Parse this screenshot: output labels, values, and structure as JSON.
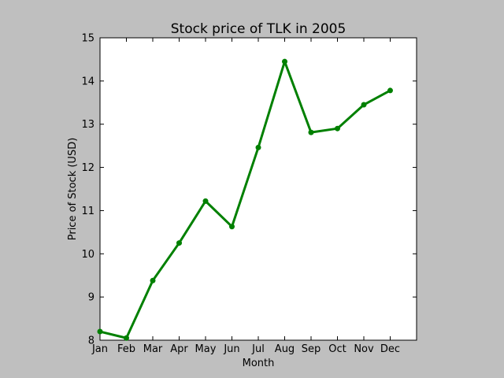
{
  "chart_data": {
    "type": "line",
    "title": "Stock price of TLK in 2005",
    "xlabel": "Month",
    "ylabel": "Price of Stock (USD)",
    "categories": [
      "Jan",
      "Feb",
      "Mar",
      "Apr",
      "May",
      "Jun",
      "Jul",
      "Aug",
      "Sep",
      "Oct",
      "Nov",
      "Dec"
    ],
    "values": [
      8.2,
      8.05,
      9.38,
      10.25,
      11.22,
      10.63,
      12.46,
      14.45,
      12.81,
      12.9,
      13.45,
      13.78
    ],
    "ylim": [
      8,
      15
    ],
    "yticks": [
      8,
      9,
      10,
      11,
      12,
      13,
      14,
      15
    ],
    "grid": false,
    "line_color": "#008000",
    "background_color": "#bfbfbf",
    "plot_background_color": "#ffffff"
  }
}
